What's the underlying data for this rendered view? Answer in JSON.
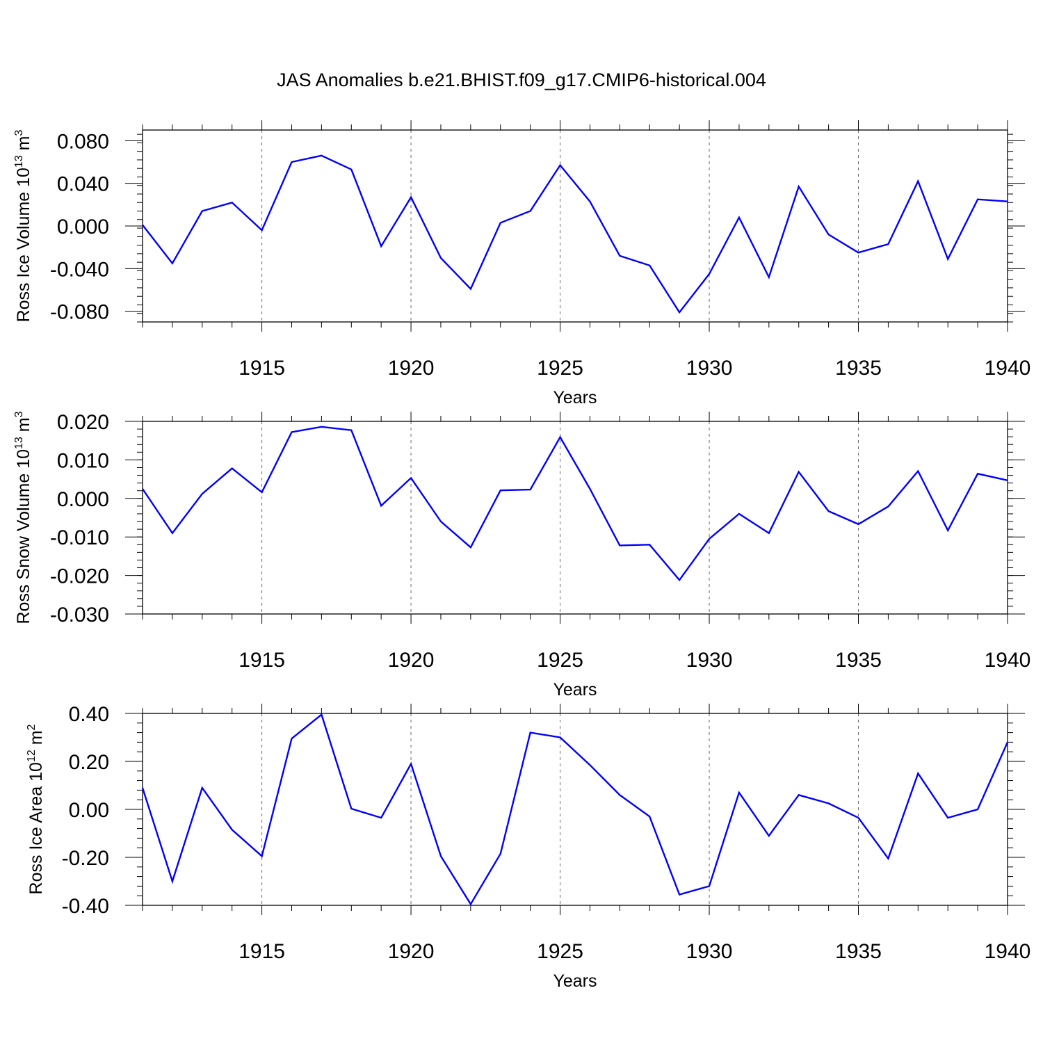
{
  "title": "JAS Anomalies b.e21.BHIST.f09_g17.CMIP6-historical.004",
  "line_color": "#0000ff",
  "chart_data": [
    {
      "type": "line",
      "ylabel": "Ross Ice Volume 10",
      "ylabel_exp": "13",
      "ylabel_unit": " m",
      "ylabel_unit_exp": "3",
      "xlabel": "Years",
      "xlim": [
        1911,
        1940
      ],
      "ylim": [
        -0.09,
        0.09
      ],
      "yticks": [
        -0.08,
        -0.04,
        0.0,
        0.04,
        0.08
      ],
      "ytick_labels": [
        "-0.080",
        "-0.040",
        "0.000",
        "0.040",
        "0.080"
      ],
      "yminor_step": 0.008,
      "xticks": [
        1915,
        1920,
        1925,
        1930,
        1935,
        1940
      ],
      "xtick_labels": [
        "1915",
        "1920",
        "1925",
        "1930",
        "1935",
        "1940"
      ],
      "grid": "dashed vertical at major x ticks",
      "x": [
        1911,
        1912,
        1913,
        1914,
        1915,
        1916,
        1917,
        1918,
        1919,
        1920,
        1921,
        1922,
        1923,
        1924,
        1925,
        1926,
        1927,
        1928,
        1929,
        1930,
        1931,
        1932,
        1933,
        1934,
        1935,
        1936,
        1937,
        1938,
        1939,
        1940
      ],
      "values": [
        0.001,
        -0.035,
        0.014,
        0.022,
        -0.004,
        0.06,
        0.066,
        0.053,
        -0.019,
        0.027,
        -0.03,
        -0.059,
        0.003,
        0.014,
        0.057,
        0.023,
        -0.028,
        -0.037,
        -0.081,
        -0.045,
        0.008,
        -0.048,
        0.037,
        -0.008,
        -0.025,
        -0.017,
        0.042,
        -0.031,
        0.025,
        0.023
      ]
    },
    {
      "type": "line",
      "ylabel": "Ross Snow Volume 10",
      "ylabel_exp": "13",
      "ylabel_unit": " m",
      "ylabel_unit_exp": "3",
      "xlabel": "Years",
      "xlim": [
        1911,
        1940
      ],
      "ylim": [
        -0.03,
        0.02
      ],
      "yticks": [
        -0.03,
        -0.02,
        -0.01,
        0.0,
        0.01,
        0.02
      ],
      "ytick_labels": [
        "-0.030",
        "-0.020",
        "-0.010",
        "0.000",
        "0.010",
        "0.020"
      ],
      "yminor_step": 0.002,
      "xticks": [
        1915,
        1920,
        1925,
        1930,
        1935,
        1940
      ],
      "xtick_labels": [
        "1915",
        "1920",
        "1925",
        "1930",
        "1935",
        "1940"
      ],
      "grid": "dashed vertical at major x ticks",
      "x": [
        1911,
        1912,
        1913,
        1914,
        1915,
        1916,
        1917,
        1918,
        1919,
        1920,
        1921,
        1922,
        1923,
        1924,
        1925,
        1926,
        1927,
        1928,
        1929,
        1930,
        1931,
        1932,
        1933,
        1934,
        1935,
        1936,
        1937,
        1938,
        1939,
        1940
      ],
      "values": [
        0.0025,
        -0.009,
        0.0012,
        0.0078,
        0.0016,
        0.0172,
        0.0186,
        0.0177,
        -0.0019,
        0.0053,
        -0.006,
        -0.0127,
        0.0021,
        0.0023,
        0.0159,
        0.0025,
        -0.0122,
        -0.012,
        -0.0212,
        -0.0105,
        -0.004,
        -0.009,
        0.0069,
        -0.0033,
        -0.0067,
        -0.0021,
        0.0071,
        -0.0083,
        0.0064,
        0.0047
      ]
    },
    {
      "type": "line",
      "ylabel": "Ross Ice Area 10",
      "ylabel_exp": "12",
      "ylabel_unit": " m",
      "ylabel_unit_exp": "2",
      "xlabel": "Years",
      "xlim": [
        1911,
        1940
      ],
      "ylim": [
        -0.4,
        0.4
      ],
      "yticks": [
        -0.4,
        -0.2,
        0.0,
        0.2,
        0.4
      ],
      "ytick_labels": [
        "-0.40",
        "-0.20",
        "0.00",
        "0.20",
        "0.40"
      ],
      "yminor_step": 0.04,
      "xticks": [
        1915,
        1920,
        1925,
        1930,
        1935,
        1940
      ],
      "xtick_labels": [
        "1915",
        "1920",
        "1925",
        "1930",
        "1935",
        "1940"
      ],
      "grid": "dashed vertical at major x ticks",
      "x": [
        1911,
        1912,
        1913,
        1914,
        1915,
        1916,
        1917,
        1918,
        1919,
        1920,
        1921,
        1922,
        1923,
        1924,
        1925,
        1926,
        1927,
        1928,
        1929,
        1930,
        1931,
        1932,
        1933,
        1934,
        1935,
        1936,
        1937,
        1938,
        1939,
        1940
      ],
      "values": [
        0.09,
        -0.3,
        0.09,
        -0.085,
        -0.195,
        0.295,
        0.395,
        0.003,
        -0.035,
        0.19,
        -0.195,
        -0.395,
        -0.185,
        0.32,
        0.3,
        0.185,
        0.06,
        -0.03,
        -0.355,
        -0.32,
        0.07,
        -0.11,
        0.06,
        0.025,
        -0.035,
        -0.205,
        0.15,
        -0.035,
        0.0,
        0.28
      ]
    }
  ]
}
